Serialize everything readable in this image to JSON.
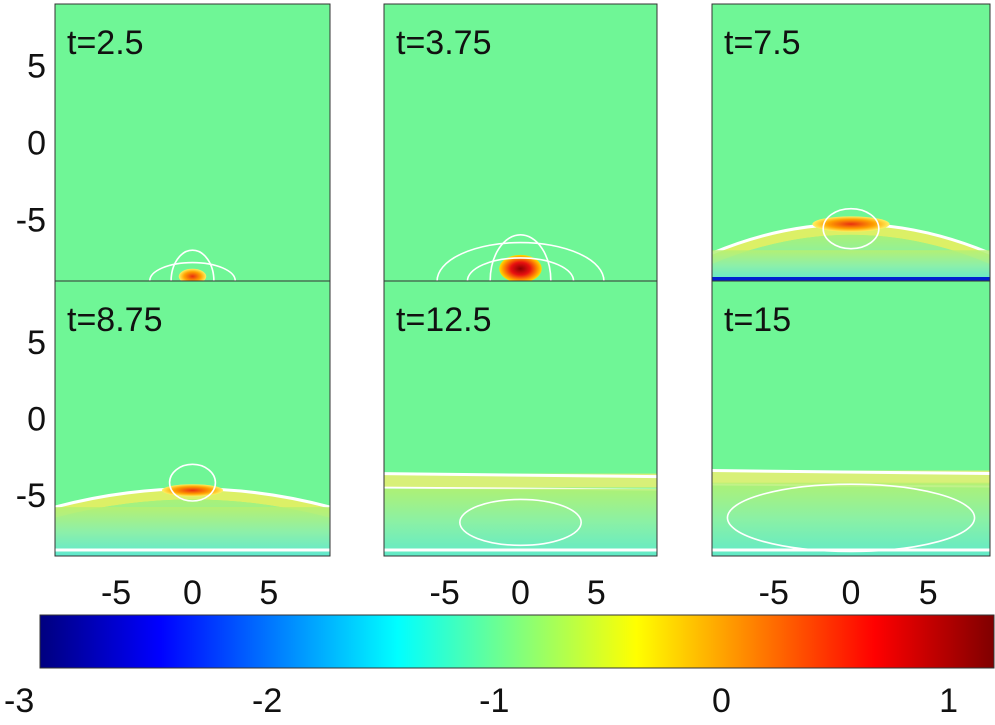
{
  "colors": {
    "background_field": "#6FF696",
    "contour": "#ffffff",
    "axis": "#333333"
  },
  "chart_data": {
    "type": "heatmap",
    "colormap": "jet",
    "contours": true,
    "colorbar": {
      "orientation": "horizontal",
      "range": [
        -3,
        1.2
      ],
      "ticks": [
        -3,
        -2,
        -1,
        0,
        1
      ],
      "tick_labels": [
        "-3",
        "-2",
        "-1",
        "0",
        "1"
      ]
    },
    "x_ticks": [
      -5,
      0,
      5
    ],
    "x_tick_labels": [
      "-5",
      "0",
      "5"
    ],
    "y_ticks": [
      5,
      0,
      -5
    ],
    "y_tick_labels": [
      "5",
      "0",
      "-5"
    ],
    "xlim": [
      -9,
      9
    ],
    "ylim": [
      -9,
      9
    ],
    "panels": [
      {
        "label": "t=2.5",
        "t": 2.5,
        "features": [
          {
            "kind": "blob",
            "x": 0,
            "y": -8.7,
            "rx": 0.9,
            "ry": 0.5,
            "value": 0.8
          }
        ],
        "contours": [
          {
            "x": 0,
            "y": -9,
            "rx": 2.8,
            "ry": 1.2
          },
          {
            "x": 0,
            "y": -9,
            "rx": 1.4,
            "ry": 2.0
          }
        ]
      },
      {
        "label": "t=3.75",
        "t": 3.75,
        "features": [
          {
            "kind": "blob",
            "x": 0,
            "y": -8.2,
            "rx": 1.4,
            "ry": 0.9,
            "value": 1.1
          }
        ],
        "contours": [
          {
            "x": 0,
            "y": -9,
            "rx": 5.5,
            "ry": 2.5
          },
          {
            "x": 0,
            "y": -9,
            "rx": 2.0,
            "ry": 3.0
          },
          {
            "x": 0,
            "y": -9,
            "rx": 3.5,
            "ry": 1.5
          }
        ]
      },
      {
        "label": "t=7.5",
        "t": 7.5,
        "features": [
          {
            "kind": "front",
            "y_center": -5.3,
            "y_edge": -7.2,
            "thickness": 0.7,
            "value": 0.3
          },
          {
            "kind": "blob",
            "x": 0,
            "y": -5.3,
            "rx": 2.5,
            "ry": 0.5,
            "value": 0.7
          },
          {
            "kind": "wake",
            "y_top": -7,
            "value": -0.6
          },
          {
            "kind": "floor",
            "value": -2.5
          }
        ],
        "contours": [
          {
            "x": 0,
            "y": -5.6,
            "rx": 1.8,
            "ry": 1.3
          }
        ]
      },
      {
        "label": "t=8.75",
        "t": 8.75,
        "features": [
          {
            "kind": "front",
            "y_center": -4.6,
            "y_edge": -5.8,
            "thickness": 0.7,
            "value": 0.2
          },
          {
            "kind": "blob",
            "x": 0,
            "y": -4.7,
            "rx": 2.0,
            "ry": 0.4,
            "value": 0.5
          },
          {
            "kind": "wake",
            "y_top": -5.8,
            "value": -0.7
          }
        ],
        "contours": [
          {
            "x": 0,
            "y": -4.2,
            "rx": 1.5,
            "ry": 1.2
          }
        ]
      },
      {
        "label": "t=12.5",
        "t": 12.5,
        "features": [
          {
            "kind": "band",
            "y": -4.0,
            "value": -0.1
          },
          {
            "kind": "wake",
            "y_top": -4.6,
            "value": -0.9
          }
        ],
        "contours": [
          {
            "x": 0,
            "y": -6.8,
            "rx": 4.0,
            "ry": 1.5
          }
        ]
      },
      {
        "label": "t=15",
        "t": 15,
        "features": [
          {
            "kind": "band",
            "y": -3.8,
            "value": -0.2
          },
          {
            "kind": "wake",
            "y_top": -4.2,
            "value": -1.0
          }
        ],
        "contours": [
          {
            "x": 0,
            "y": -6.5,
            "rx": 8.0,
            "ry": 2.2
          }
        ]
      }
    ]
  }
}
